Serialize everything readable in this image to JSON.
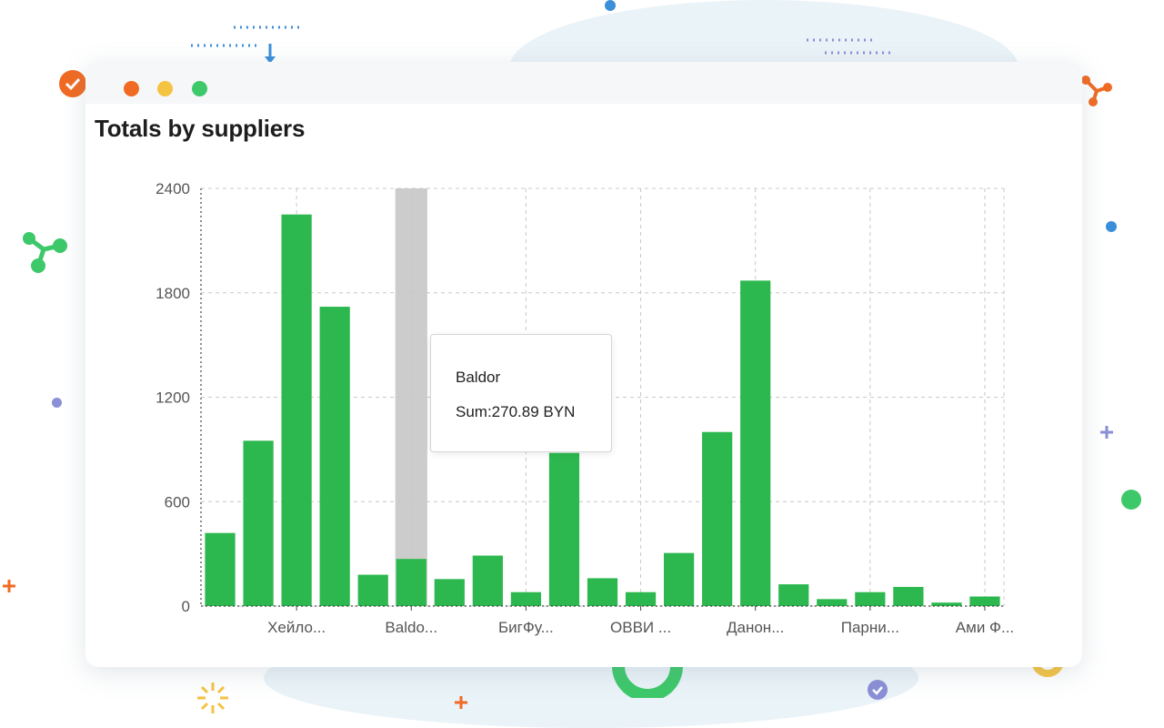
{
  "window": {
    "controls": [
      {
        "name": "close",
        "color": "#f06a23"
      },
      {
        "name": "minimize",
        "color": "#f5c342"
      },
      {
        "name": "maximize",
        "color": "#3dc86a"
      }
    ]
  },
  "chart_data": {
    "type": "bar",
    "title": "Totals by suppliers",
    "ylim": [
      0,
      2400
    ],
    "yticks": [
      0,
      600,
      1200,
      1800,
      2400
    ],
    "bar_color": "#2db84f",
    "highlight_color": "#cccccc",
    "grid": true,
    "values": [
      420,
      950,
      2250,
      1720,
      180,
      270.89,
      155,
      290,
      80,
      880,
      160,
      80,
      305,
      1000,
      1870,
      125,
      40,
      80,
      110,
      20,
      55
    ],
    "category_labels": [
      {
        "index": 2,
        "label": "Хейло..."
      },
      {
        "index": 5,
        "label": "Baldo..."
      },
      {
        "index": 8,
        "label": "БигФу..."
      },
      {
        "index": 11,
        "label": "ОВВИ ..."
      },
      {
        "index": 14,
        "label": "Данон..."
      },
      {
        "index": 17,
        "label": "Парни..."
      },
      {
        "index": 20,
        "label": "Ами Ф..."
      }
    ],
    "highlighted_index": 5,
    "tooltip": {
      "name": "Baldor",
      "sum": "Sum:270.89 BYN"
    }
  }
}
